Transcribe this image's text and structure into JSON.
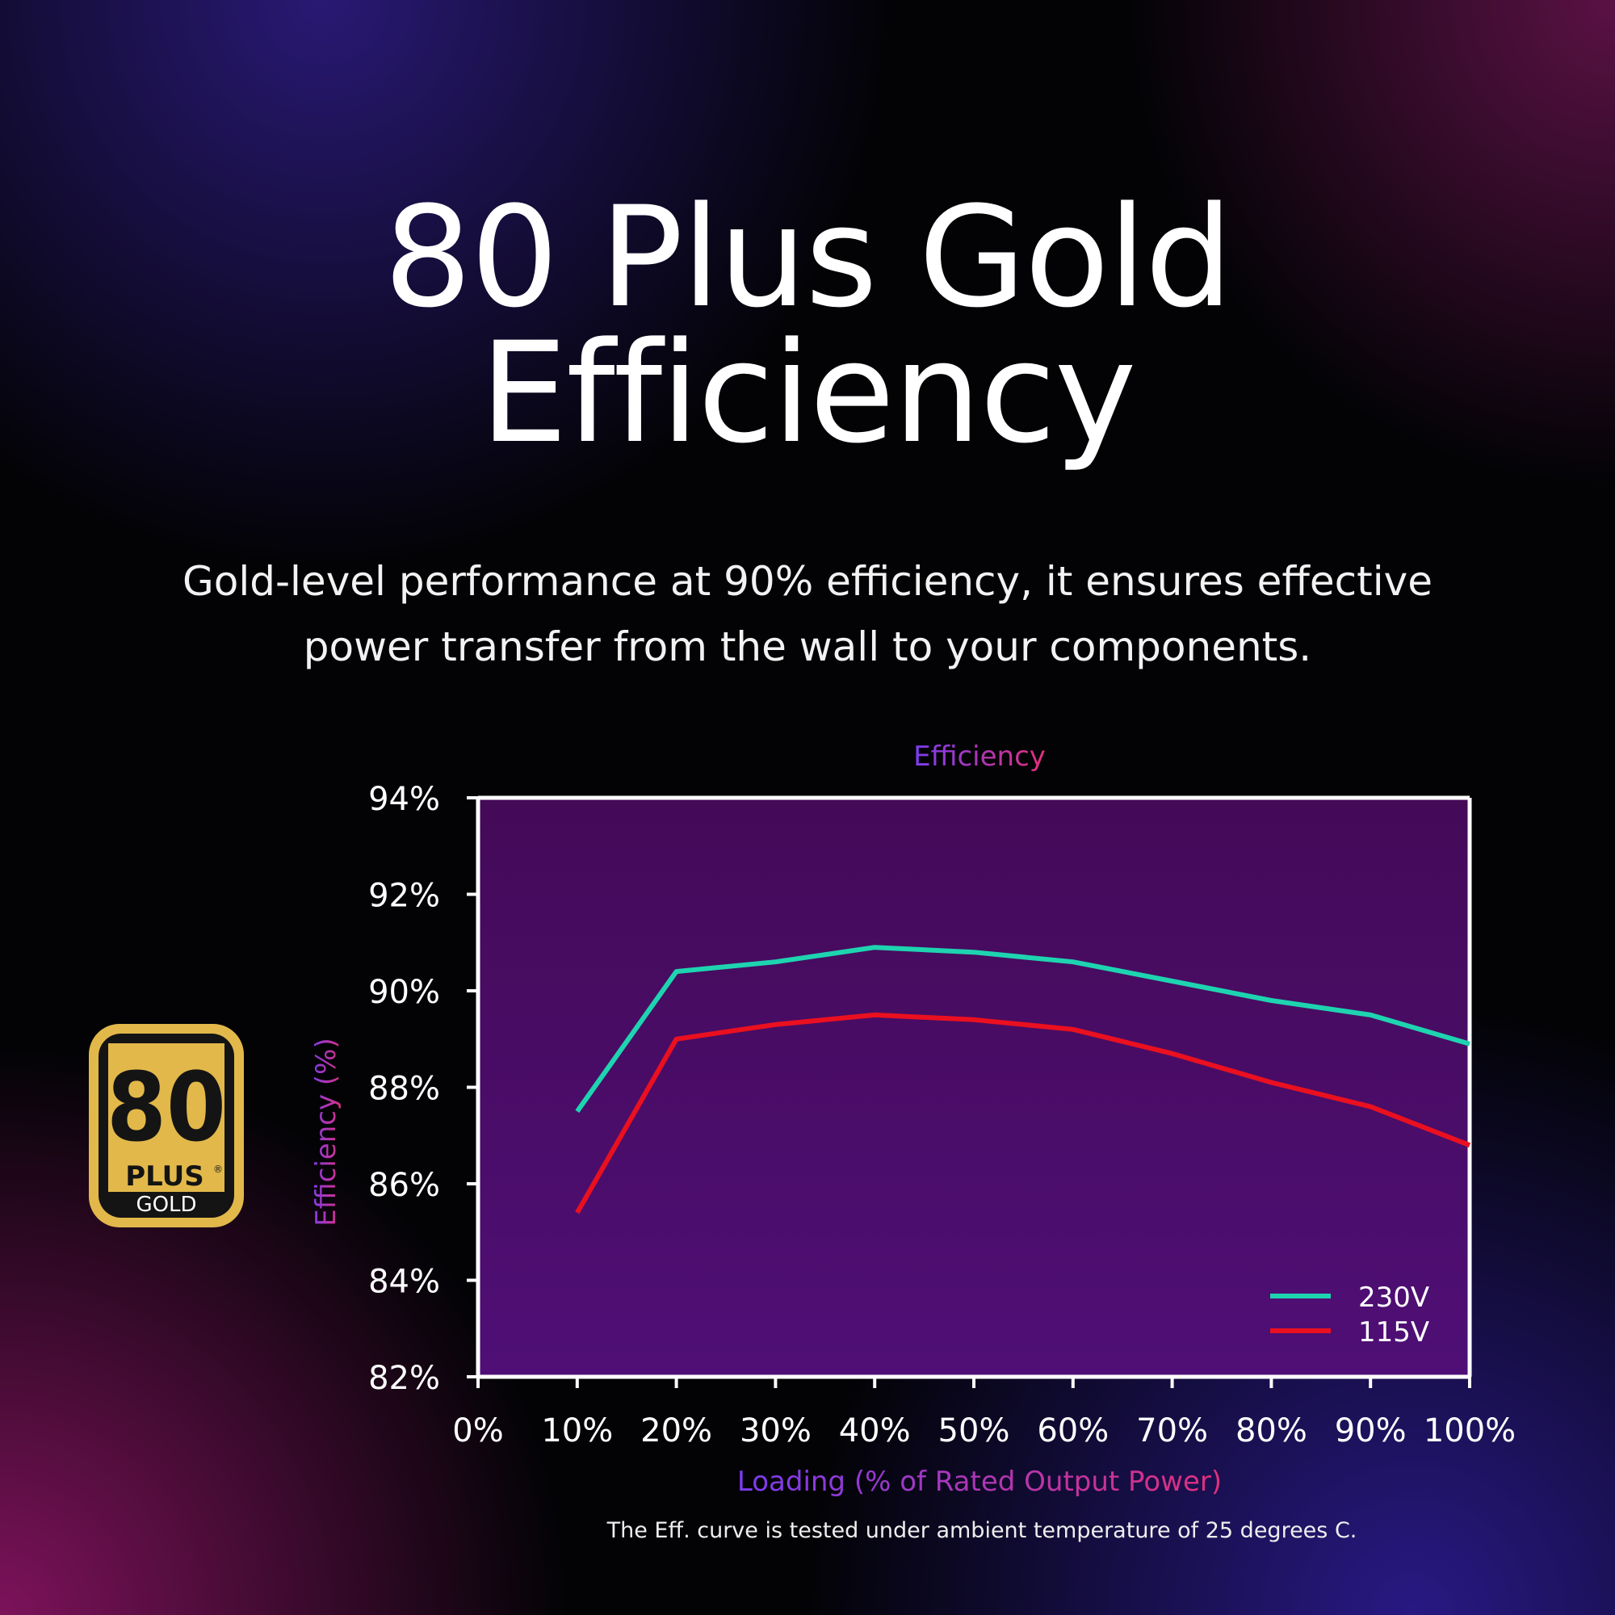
{
  "headline": {
    "line1": "80 Plus Gold",
    "line2": "Efficiency"
  },
  "subheadline": {
    "line1": "Gold-level performance at 90% efficiency, it ensures effective",
    "line2": "power transfer from the wall to your components."
  },
  "badge": {
    "number": "80",
    "plus": "PLUS",
    "tier": "GOLD",
    "registered": "®",
    "color": "#e2b84a"
  },
  "footnote": "The Eff. curve is tested under ambient temperature of 25 degrees C.",
  "colors": {
    "plot_bg_top": "#440a58",
    "plot_bg_bottom": "#4f0f76",
    "axis": "#ffffff",
    "title_from": "#7b3cf0",
    "title_to": "#e0307a"
  },
  "chart_data": {
    "type": "line",
    "title": "Efficiency",
    "xlabel": "Loading (% of Rated Output Power)",
    "ylabel": "Efficiency (%)",
    "xlim": [
      0,
      100
    ],
    "ylim": [
      82,
      94
    ],
    "x_ticks": [
      "0%",
      "10%",
      "20%",
      "30%",
      "40%",
      "50%",
      "60%",
      "70%",
      "80%",
      "90%",
      "100%"
    ],
    "y_ticks": [
      "94%",
      "92%",
      "90%",
      "88%",
      "86%",
      "84%",
      "82%"
    ],
    "legend_position": "bottom-right",
    "grid": false,
    "series": [
      {
        "name": "230V",
        "color": "#1ed4b0",
        "x": [
          10,
          20,
          30,
          40,
          50,
          60,
          70,
          80,
          90,
          100
        ],
        "y": [
          87.5,
          90.4,
          90.6,
          90.9,
          90.8,
          90.6,
          90.2,
          89.8,
          89.5,
          88.9
        ]
      },
      {
        "name": "115V",
        "color": "#ea1020",
        "x": [
          10,
          20,
          30,
          40,
          50,
          60,
          70,
          80,
          90,
          100
        ],
        "y": [
          85.4,
          89.0,
          89.3,
          89.5,
          89.4,
          89.2,
          88.7,
          88.1,
          87.6,
          86.8
        ]
      }
    ]
  }
}
